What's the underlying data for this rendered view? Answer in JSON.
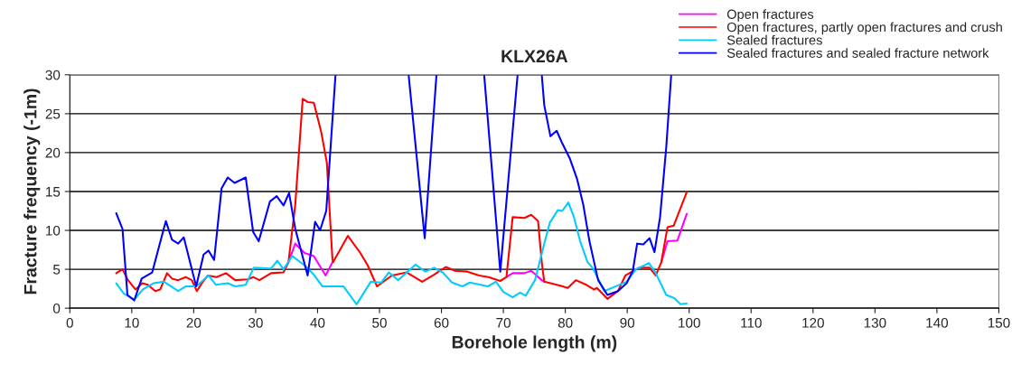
{
  "chart_data": {
    "type": "line",
    "title": "KLX26A",
    "xlabel": "Borehole length (m)",
    "ylabel": "Fracture frequency (-1m)",
    "xlim": [
      0,
      150
    ],
    "xticks": [
      0,
      10,
      20,
      30,
      40,
      50,
      60,
      70,
      80,
      90,
      100,
      110,
      120,
      130,
      140,
      150
    ],
    "ylim": [
      0,
      30
    ],
    "yticks": [
      0,
      5,
      10,
      15,
      20,
      25,
      30
    ],
    "grid": "y",
    "legend": "top right",
    "marker": "none",
    "line_style": "solid",
    "series": [
      {
        "name": "Open fractures",
        "color": "#ff00ff",
        "x": [
          35.3,
          36.4,
          37.9,
          39.4,
          41.3,
          42.4,
          42.5,
          null,
          70.5,
          71.5,
          73.4,
          74.5,
          76.2,
          76.6,
          null,
          95.5,
          96.5,
          98.1,
          99.6
        ],
        "values": [
          5.9,
          8.3,
          7.1,
          6.7,
          4.2,
          5.9,
          5.9,
          null,
          4.0,
          4.5,
          4.5,
          4.8,
          3.6,
          3.4,
          null,
          5.9,
          8.6,
          8.7,
          12.1
        ]
      },
      {
        "name": "Open fractures, partly open fractures and crush",
        "color": "#ff0000",
        "x": [
          7.5,
          8.5,
          9.4,
          10.6,
          11.7,
          12.6,
          13.8,
          14.6,
          15.7,
          16.5,
          17.5,
          18.7,
          19.7,
          20.5,
          21.3,
          22.3,
          23.7,
          25.2,
          26.7,
          28.7,
          29.6,
          30.6,
          32.5,
          34.5,
          35.3,
          36.4,
          37.6,
          38.4,
          39.4,
          40.6,
          41.5,
          42.4,
          42.5,
          44.9,
          46.9,
          48.1,
          49.6,
          52.0,
          54.4,
          56.9,
          58.8,
          60.7,
          62.2,
          64.2,
          66.1,
          67.6,
          69.5,
          70.5,
          71.5,
          73.4,
          74.5,
          75.6,
          76.2,
          76.6,
          79.2,
          80.4,
          81.7,
          83.4,
          84.6,
          85.1,
          86.8,
          88.5,
          89.7,
          91.9,
          93.6,
          94.6,
          95.5,
          96.5,
          97.5,
          99.6
        ],
        "values": [
          4.5,
          5.0,
          3.6,
          2.4,
          3.2,
          3.0,
          2.2,
          2.4,
          4.5,
          3.8,
          3.6,
          4.0,
          3.6,
          2.2,
          3.2,
          4.2,
          4.0,
          4.5,
          3.6,
          3.7,
          4.0,
          3.6,
          4.5,
          4.6,
          5.9,
          13.3,
          26.9,
          26.5,
          26.4,
          22.6,
          18.7,
          6.3,
          5.9,
          9.3,
          7.1,
          5.5,
          2.8,
          4.2,
          4.6,
          3.4,
          4.3,
          5.3,
          4.8,
          4.7,
          4.2,
          4.0,
          3.5,
          4.0,
          11.7,
          11.6,
          12.0,
          11.2,
          5.9,
          3.4,
          2.9,
          2.6,
          3.6,
          3.0,
          2.4,
          2.6,
          1.2,
          2.2,
          4.2,
          5.2,
          5.2,
          4.2,
          5.9,
          10.4,
          10.6,
          14.9
        ]
      },
      {
        "name": "Sealed fractures",
        "color": "#00ccff",
        "x": [
          7.5,
          8.7,
          10.4,
          11.8,
          13.5,
          15.2,
          17.5,
          18.7,
          20.4,
          22.4,
          23.6,
          25.5,
          26.7,
          28.4,
          29.7,
          32.5,
          33.5,
          34.5,
          35.9,
          37.9,
          39.4,
          40.8,
          42.8,
          44.2,
          46.3,
          48.6,
          50.3,
          51.5,
          53.0,
          55.8,
          57.4,
          58.8,
          60.2,
          61.7,
          63.4,
          64.6,
          67.5,
          68.8,
          70.0,
          71.5,
          72.7,
          73.6,
          75.1,
          76.6,
          77.5,
          78.8,
          79.5,
          80.5,
          81.4,
          82.4,
          83.6,
          84.4,
          86.3,
          89.9,
          91.4,
          93.5,
          94.6,
          96.3,
          97.6,
          98.6,
          99.6
        ],
        "values": [
          3.2,
          1.9,
          1.1,
          2.4,
          3.2,
          3.4,
          2.2,
          2.8,
          2.8,
          4.2,
          3.0,
          3.2,
          2.8,
          3.0,
          5.2,
          5.1,
          6.1,
          5.0,
          6.7,
          5.5,
          4.3,
          2.8,
          2.8,
          2.8,
          0.5,
          3.4,
          3.3,
          4.6,
          3.6,
          5.6,
          4.7,
          5.2,
          4.6,
          3.3,
          2.8,
          3.3,
          2.8,
          3.4,
          2.1,
          1.4,
          2.0,
          1.6,
          3.6,
          8.3,
          11.0,
          12.6,
          12.5,
          13.6,
          11.7,
          8.6,
          5.9,
          5.2,
          2.2,
          3.4,
          5.0,
          5.8,
          4.5,
          1.7,
          1.3,
          0.5,
          0.6
        ]
      },
      {
        "name": "Sealed fractures and sealed fracture network",
        "color": "#0000ff",
        "x": [
          7.5,
          8.5,
          9.3,
          10.4,
          11.6,
          13.3,
          15.5,
          16.5,
          17.5,
          18.4,
          20.4,
          21.6,
          22.4,
          23.3,
          24.5,
          25.5,
          26.6,
          28.4,
          29.6,
          30.5,
          32.3,
          33.4,
          34.5,
          35.4,
          36.4,
          38.4,
          39.6,
          40.4,
          41.4,
          42.9,
          50.0,
          54.7,
          57.3,
          59.2,
          63.0,
          66.9,
          69.5,
          72.3,
          74.0,
          76.2,
          76.6,
          77.6,
          78.6,
          79.5,
          80.7,
          81.9,
          82.9,
          83.9,
          85.3,
          86.8,
          88.5,
          89.9,
          90.9,
          91.6,
          92.6,
          93.6,
          94.4,
          95.3,
          96.3,
          97.1
        ],
        "values": [
          12.2,
          10.2,
          1.7,
          1.0,
          3.8,
          4.6,
          11.2,
          8.8,
          8.3,
          9.1,
          2.8,
          6.9,
          7.4,
          6.2,
          15.4,
          16.8,
          16.1,
          16.8,
          9.8,
          8.6,
          13.7,
          14.4,
          13.2,
          14.8,
          10.2,
          4.2,
          11.1,
          10.0,
          12.5,
          30,
          null,
          30,
          9.0,
          30,
          null,
          30,
          4.7,
          30,
          null,
          30,
          26.1,
          22.1,
          22.8,
          21.2,
          19.3,
          16.6,
          13.3,
          8.6,
          3.6,
          1.7,
          2.2,
          3.2,
          4.8,
          8.3,
          8.2,
          9.0,
          7.2,
          11.7,
          20.7,
          30
        ]
      }
    ]
  }
}
